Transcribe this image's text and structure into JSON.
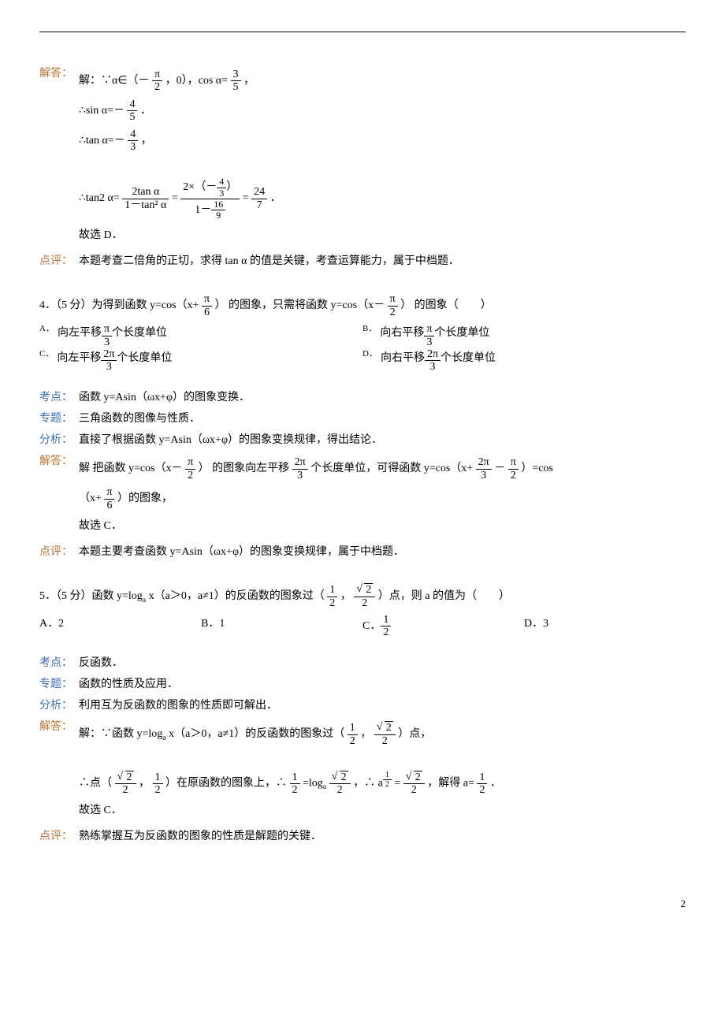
{
  "page_number": "2",
  "sec1": {
    "tag_answer": "解答：",
    "l1a": "解：∵α∈（－",
    "l1b": "，0），cos α=",
    "l1c": "，",
    "frac_pi2": {
      "num": "π",
      "den": "2"
    },
    "frac_35": {
      "num": "3",
      "den": "5"
    },
    "l2a": "∴sin α=－",
    "l2b": "．",
    "frac_45": {
      "num": "4",
      "den": "5"
    },
    "l3a": "∴tan α=－",
    "l3b": "，",
    "frac_43": {
      "num": "4",
      "den": "3"
    },
    "l4a": "∴tan2 α=",
    "l4b": "=",
    "l4c": "=",
    "l4d": "．",
    "frac_2tan": {
      "num": "2tan α",
      "den": "1－tan² α"
    },
    "frac_mid_num_a": "2×（－",
    "frac_mid_num_b": "）",
    "frac_mid_den_a": "1－",
    "frac_169": {
      "num": "16",
      "den": "9"
    },
    "frac_247": {
      "num": "24",
      "den": "7"
    },
    "l5": "故选 D．",
    "tag_comment": "点评：",
    "comment": "本题考查二倍角的正切，求得 tan α 的值是关键，考查运算能力，属于中档题．"
  },
  "q4": {
    "stem_a": "4．（5 分）为得到函数",
    "stem_b": "y=cos（x+",
    "stem_c": "）",
    "stem_d": "的图象，只需将函数",
    "stem_e": "y=cos（x－",
    "stem_f": "）",
    "stem_g": "的图象（　　）",
    "frac_pi6": {
      "num": "π",
      "den": "6"
    },
    "frac_pi2": {
      "num": "π",
      "den": "2"
    },
    "optA_a": "向左平移",
    "optA_b": "个长度单位",
    "optB_a": "向右平移",
    "optB_b": "个长度单位",
    "optC_a": "向左平移",
    "optC_b": "个长度单位",
    "optD_a": "向右平移",
    "optD_b": "个长度单位",
    "frac_pi3": {
      "num": "π",
      "den": "3"
    },
    "frac_2pi3": {
      "num": "2π",
      "den": "3"
    },
    "tag_point": "考点：",
    "point": "函数 y=Asin（ωx+φ）的图象变换．",
    "tag_topic": "专题：",
    "topic": "三角函数的图像与性质．",
    "tag_analysis": "分析：",
    "analysis": "直接了根据函数 y=Asin（ωx+φ）的图象变换规律，得出结论．",
    "tag_answer": "解答：",
    "ans_a": "解 把函数",
    "ans_b": "y=cos（x－",
    "ans_c": "）",
    "ans_d": "的图象向左平移",
    "ans_e": "个长度单位，可得函数 y=cos（x+",
    "ans_f": "－",
    "ans_g": "）=cos",
    "ans_h": "（x+",
    "ans_i": "）的图象，",
    "ans_j": "故选 C．",
    "tag_comment": "点评：",
    "comment": "本题主要考查函数 y=Asin（ωx+φ）的图象变换规律，属于中档题．"
  },
  "q5": {
    "stem_a": "5．（5 分）函数 y=log",
    "stem_sub": "a",
    "stem_b": "x（a＞0，a≠1）的反函数的图象过（",
    "stem_c": "， ",
    "stem_d": "）点，则 a 的值为（　　）",
    "frac_12": {
      "num": "1",
      "den": "2"
    },
    "sqrt2_2": {
      "num_rad": "2",
      "den": "2"
    },
    "optA": "A．2",
    "optB": "B．1",
    "optC": "C．",
    "optD": "D．3",
    "tag_point": "考点：",
    "point": "反函数．",
    "tag_topic": "专题：",
    "topic": "函数的性质及应用．",
    "tag_analysis": "分析：",
    "analysis": "利用互为反函数的图象的性质即可解出．",
    "tag_answer": "解答：",
    "ans_a": "解：∵函数 y=log",
    "ans_b": "x（a＞0，a≠1）的反函数的图象过（",
    "ans_c": "， ",
    "ans_d": "）点，",
    "ans2_a": "∴点（",
    "ans2_b": "，",
    "ans2_c": "）在原函数的图象上，∴",
    "ans2_d": "=log",
    "ans2_e": "，∴",
    "ans2_f": "a",
    "ans2_g": "=",
    "ans2_h": "，解得 a=",
    "ans2_i": "．",
    "ans3": "故选 C．",
    "tag_comment": "点评：",
    "comment": "熟练掌握互为反函数的图象的性质是解题的关键．"
  }
}
